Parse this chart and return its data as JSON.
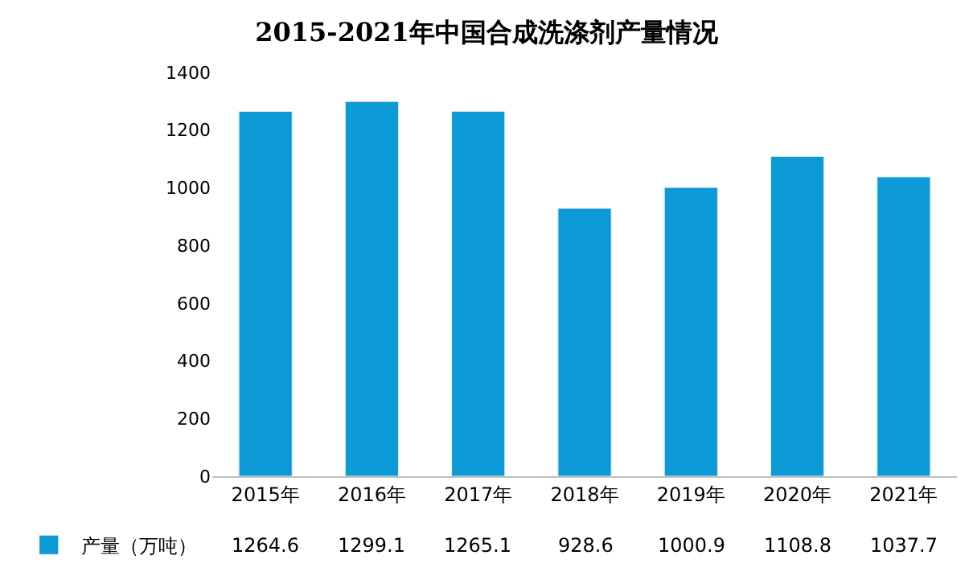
{
  "chart_data": {
    "type": "bar",
    "title": "2015-2021年中国合成洗涤剂产量情况",
    "categories": [
      "2015年",
      "2016年",
      "2017年",
      "2018年",
      "2019年",
      "2020年",
      "2021年"
    ],
    "series": [
      {
        "name": "产量（万吨）",
        "color": "#0b9ad6",
        "values": [
          1264.6,
          1299.1,
          1265.1,
          928.6,
          1000.9,
          1108.8,
          1037.7
        ]
      }
    ],
    "ylim": [
      0,
      1400
    ],
    "yticks": [
      0,
      200,
      400,
      600,
      800,
      1000,
      1200,
      1400
    ],
    "grid": false,
    "legend": "bottom left",
    "data_labels": true
  }
}
